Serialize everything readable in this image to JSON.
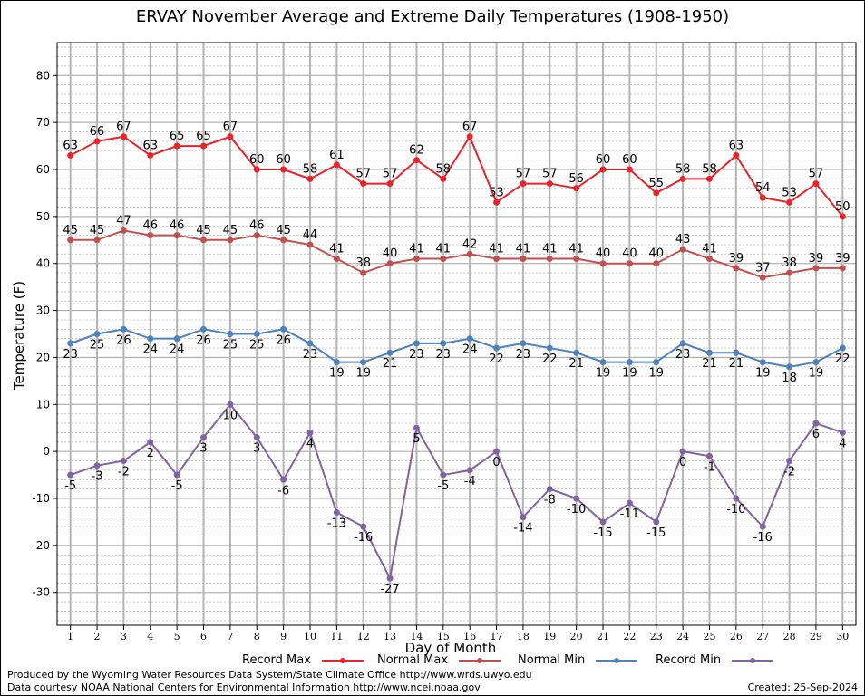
{
  "title": "ERVAY November Average and Extreme Daily Temperatures (1908-1950)",
  "footer": {
    "produced_by": "Produced by the Wyoming Water Resources Data System/State Climate Office http://www.wrds.uwyo.edu",
    "courtesy": "Data courtesy NOAA National Centers for Environmental Information http://www.ncei.noaa.gov",
    "created": "Created:  25-Sep-2024"
  },
  "chart_data": {
    "type": "line",
    "title": "ERVAY November Average and Extreme Daily Temperatures (1908-1950)",
    "xlabel": "Day of Month",
    "ylabel": "Temperature (F)",
    "xlim": [
      0.5,
      30.5
    ],
    "ylim": [
      -37,
      87
    ],
    "y_ticks": [
      -30,
      -20,
      -10,
      0,
      10,
      20,
      30,
      40,
      50,
      60,
      70,
      80
    ],
    "x": [
      1,
      2,
      3,
      4,
      5,
      6,
      7,
      8,
      9,
      10,
      11,
      12,
      13,
      14,
      15,
      16,
      17,
      18,
      19,
      20,
      21,
      22,
      23,
      24,
      25,
      26,
      27,
      28,
      29,
      30
    ],
    "grid": true,
    "legend_position": "bottom",
    "series": [
      {
        "name": "Record Max",
        "color": "#e8232a",
        "label_position": "above",
        "values": [
          63,
          66,
          67,
          63,
          65,
          65,
          67,
          60,
          60,
          58,
          61,
          57,
          57,
          62,
          58,
          67,
          53,
          57,
          57,
          56,
          60,
          60,
          55,
          58,
          58,
          63,
          54,
          53,
          57,
          50
        ]
      },
      {
        "name": "Normal Max",
        "color": "#c0504d",
        "label_position": "above",
        "values": [
          45,
          45,
          47,
          46,
          46,
          45,
          45,
          46,
          45,
          44,
          41,
          38,
          40,
          41,
          41,
          42,
          41,
          41,
          41,
          41,
          40,
          40,
          40,
          43,
          41,
          39,
          37,
          38,
          39,
          39
        ]
      },
      {
        "name": "Normal Min",
        "color": "#4f81bd",
        "label_position": "below",
        "values": [
          23,
          25,
          26,
          24,
          24,
          26,
          25,
          25,
          26,
          23,
          19,
          19,
          21,
          23,
          23,
          24,
          22,
          23,
          22,
          21,
          19,
          19,
          19,
          23,
          21,
          21,
          19,
          18,
          19,
          22
        ]
      },
      {
        "name": "Record Min",
        "color": "#8064a2",
        "label_position": "below",
        "values": [
          -5,
          -3,
          -2,
          2,
          -5,
          3,
          10,
          3,
          -6,
          4,
          -13,
          -16,
          -27,
          5,
          -5,
          -4,
          0,
          -14,
          -8,
          -10,
          -15,
          -11,
          -15,
          0,
          -1,
          -10,
          -16,
          -2,
          6,
          4
        ]
      }
    ]
  }
}
